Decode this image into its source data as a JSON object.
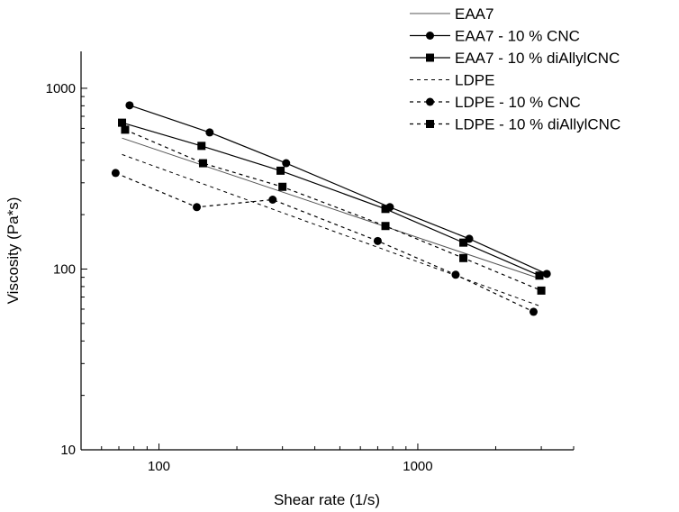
{
  "chart_data": {
    "type": "line",
    "xlabel": "Shear rate (1/s)",
    "ylabel": "Viscosity (Pa*s)",
    "xscale": "log",
    "yscale": "log",
    "xlim": [
      50,
      4000
    ],
    "ylim": [
      10,
      1600
    ],
    "xticks": [
      100,
      1000
    ],
    "xtick_labels": [
      "100",
      "1000"
    ],
    "yticks": [
      10,
      100,
      1000
    ],
    "ytick_labels": [
      "10",
      "100",
      "1000"
    ],
    "grid": false,
    "legend_position": "top-right",
    "series": [
      {
        "name": "EAA7",
        "line": "solid",
        "marker": "none",
        "x": [
          72,
          3000
        ],
        "y": [
          530,
          88
        ]
      },
      {
        "name": "EAA7 - 10 % CNC",
        "line": "solid",
        "marker": "circle",
        "x": [
          77,
          157,
          310,
          780,
          1580,
          3150
        ],
        "y": [
          805,
          570,
          385,
          220,
          147,
          94
        ]
      },
      {
        "name": "EAA7 - 10 % diAllylCNC",
        "line": "solid",
        "marker": "square",
        "x": [
          72,
          146,
          295,
          750,
          1500,
          2950
        ],
        "y": [
          645,
          480,
          350,
          215,
          140,
          92
        ]
      },
      {
        "name": "LDPE",
        "line": "dashed",
        "marker": "none",
        "x": [
          72,
          3000
        ],
        "y": [
          430,
          62
        ]
      },
      {
        "name": "LDPE - 10 % CNC",
        "line": "dashed",
        "marker": "circle",
        "x": [
          68,
          140,
          275,
          700,
          1400,
          2800
        ],
        "y": [
          340,
          220,
          242,
          143,
          93,
          58
        ]
      },
      {
        "name": "LDPE - 10 % diAllylCNC",
        "line": "dashed",
        "marker": "square",
        "x": [
          74,
          148,
          300,
          750,
          1500,
          3000
        ],
        "y": [
          590,
          385,
          285,
          173,
          115,
          76
        ]
      }
    ]
  }
}
